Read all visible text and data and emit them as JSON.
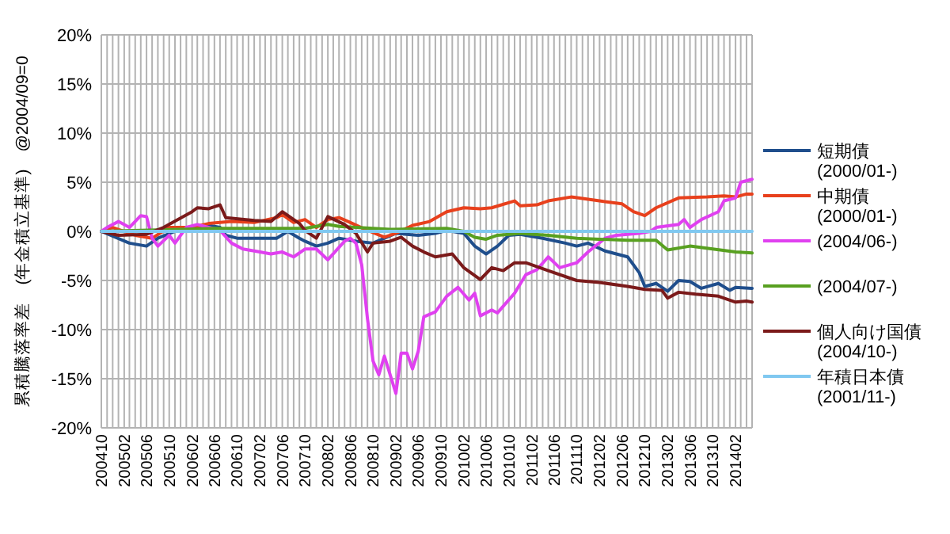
{
  "chart_data": {
    "type": "line",
    "ylabel": "累積騰落率差　(年金積立基準)　@2004/09=0",
    "ylim": [
      -20,
      20
    ],
    "yticks": [
      {
        "value": -20,
        "label": "-20%"
      },
      {
        "value": -15,
        "label": "-15%"
      },
      {
        "value": -10,
        "label": "-10%"
      },
      {
        "value": -5,
        "label": "-5%"
      },
      {
        "value": 0,
        "label": "0%"
      },
      {
        "value": 5,
        "label": "5%"
      },
      {
        "value": 10,
        "label": "10%"
      },
      {
        "value": 15,
        "label": "15%"
      },
      {
        "value": 20,
        "label": "20%"
      }
    ],
    "xlim": [
      "2004-10",
      "2014-05"
    ],
    "xticks": [
      {
        "value": "2004-10",
        "label": "200410"
      },
      {
        "value": "2004-11",
        "label": null
      },
      {
        "value": "2004-12",
        "label": null
      },
      {
        "value": "2005-01",
        "label": null
      },
      {
        "value": "2005-02",
        "label": "200502"
      },
      {
        "value": "2005-03",
        "label": null
      },
      {
        "value": "2005-04",
        "label": null
      },
      {
        "value": "2005-05",
        "label": null
      },
      {
        "value": "2005-06",
        "label": "200506"
      },
      {
        "value": "2005-07",
        "label": null
      },
      {
        "value": "2005-08",
        "label": null
      },
      {
        "value": "2005-09",
        "label": null
      },
      {
        "value": "2005-10",
        "label": "200510"
      },
      {
        "value": "2005-11",
        "label": null
      },
      {
        "value": "2005-12",
        "label": null
      },
      {
        "value": "2006-01",
        "label": null
      },
      {
        "value": "2006-02",
        "label": "200602"
      },
      {
        "value": "2006-03",
        "label": null
      },
      {
        "value": "2006-04",
        "label": null
      },
      {
        "value": "2006-05",
        "label": null
      },
      {
        "value": "2006-06",
        "label": "200606"
      },
      {
        "value": "2006-07",
        "label": null
      },
      {
        "value": "2006-08",
        "label": null
      },
      {
        "value": "2006-09",
        "label": null
      },
      {
        "value": "2006-10",
        "label": "200610"
      },
      {
        "value": "2006-11",
        "label": null
      },
      {
        "value": "2006-12",
        "label": null
      },
      {
        "value": "2007-01",
        "label": null
      },
      {
        "value": "2007-02",
        "label": "200702"
      },
      {
        "value": "2007-03",
        "label": null
      },
      {
        "value": "2007-04",
        "label": null
      },
      {
        "value": "2007-05",
        "label": null
      },
      {
        "value": "2007-06",
        "label": "200706"
      },
      {
        "value": "2007-07",
        "label": null
      },
      {
        "value": "2007-08",
        "label": null
      },
      {
        "value": "2007-09",
        "label": null
      },
      {
        "value": "2007-10",
        "label": "200710"
      },
      {
        "value": "2007-11",
        "label": null
      },
      {
        "value": "2007-12",
        "label": null
      },
      {
        "value": "2008-01",
        "label": null
      },
      {
        "value": "2008-02",
        "label": "200802"
      },
      {
        "value": "2008-03",
        "label": null
      },
      {
        "value": "2008-04",
        "label": null
      },
      {
        "value": "2008-05",
        "label": null
      },
      {
        "value": "2008-06",
        "label": "200806"
      },
      {
        "value": "2008-07",
        "label": null
      },
      {
        "value": "2008-08",
        "label": null
      },
      {
        "value": "2008-09",
        "label": null
      },
      {
        "value": "2008-10",
        "label": "200810"
      },
      {
        "value": "2008-11",
        "label": null
      },
      {
        "value": "2008-12",
        "label": null
      },
      {
        "value": "2009-01",
        "label": null
      },
      {
        "value": "2009-02",
        "label": "200902"
      },
      {
        "value": "2009-03",
        "label": null
      },
      {
        "value": "2009-04",
        "label": null
      },
      {
        "value": "2009-05",
        "label": null
      },
      {
        "value": "2009-06",
        "label": "200906"
      },
      {
        "value": "2009-07",
        "label": null
      },
      {
        "value": "2009-08",
        "label": null
      },
      {
        "value": "2009-09",
        "label": null
      },
      {
        "value": "2009-10",
        "label": "200910"
      },
      {
        "value": "2009-11",
        "label": null
      },
      {
        "value": "2009-12",
        "label": null
      },
      {
        "value": "2010-01",
        "label": null
      },
      {
        "value": "2010-02",
        "label": "201002"
      },
      {
        "value": "2010-03",
        "label": null
      },
      {
        "value": "2010-04",
        "label": null
      },
      {
        "value": "2010-05",
        "label": null
      },
      {
        "value": "2010-06",
        "label": "201006"
      },
      {
        "value": "2010-07",
        "label": null
      },
      {
        "value": "2010-08",
        "label": null
      },
      {
        "value": "2010-09",
        "label": null
      },
      {
        "value": "2010-10",
        "label": "201010"
      },
      {
        "value": "2010-11",
        "label": null
      },
      {
        "value": "2010-12",
        "label": null
      },
      {
        "value": "2011-01",
        "label": null
      },
      {
        "value": "2011-02",
        "label": "201102"
      },
      {
        "value": "2011-03",
        "label": null
      },
      {
        "value": "2011-04",
        "label": null
      },
      {
        "value": "2011-05",
        "label": null
      },
      {
        "value": "2011-06",
        "label": "201106"
      },
      {
        "value": "2011-07",
        "label": null
      },
      {
        "value": "2011-08",
        "label": null
      },
      {
        "value": "2011-09",
        "label": null
      },
      {
        "value": "2011-10",
        "label": "201110"
      },
      {
        "value": "2011-11",
        "label": null
      },
      {
        "value": "2011-12",
        "label": null
      },
      {
        "value": "2012-01",
        "label": null
      },
      {
        "value": "2012-02",
        "label": "201202"
      },
      {
        "value": "2012-03",
        "label": null
      },
      {
        "value": "2012-04",
        "label": null
      },
      {
        "value": "2012-05",
        "label": null
      },
      {
        "value": "2012-06",
        "label": "201206"
      },
      {
        "value": "2012-07",
        "label": null
      },
      {
        "value": "2012-08",
        "label": null
      },
      {
        "value": "2012-09",
        "label": null
      },
      {
        "value": "2012-10",
        "label": "201210"
      },
      {
        "value": "2012-11",
        "label": null
      },
      {
        "value": "2012-12",
        "label": null
      },
      {
        "value": "2013-01",
        "label": null
      },
      {
        "value": "2013-02",
        "label": "201302"
      },
      {
        "value": "2013-03",
        "label": null
      },
      {
        "value": "2013-04",
        "label": null
      },
      {
        "value": "2013-05",
        "label": null
      },
      {
        "value": "2013-06",
        "label": "201306"
      },
      {
        "value": "2013-07",
        "label": null
      },
      {
        "value": "2013-08",
        "label": null
      },
      {
        "value": "2013-09",
        "label": null
      },
      {
        "value": "2013-10",
        "label": "201310"
      },
      {
        "value": "2013-11",
        "label": null
      },
      {
        "value": "2013-12",
        "label": null
      },
      {
        "value": "2014-01",
        "label": null
      },
      {
        "value": "2014-02",
        "label": "201402"
      },
      {
        "value": "2014-03",
        "label": null
      },
      {
        "value": "2014-04",
        "label": null
      },
      {
        "value": "2014-05",
        "label": null
      }
    ],
    "grid": true,
    "legend": "right",
    "line_style": "solid",
    "marker": "none",
    "series": [
      {
        "name": "短期債\n(2000/01-)",
        "color": "#1f4e8c",
        "x": [
          "2004-10",
          "2005-03",
          "2005-06",
          "2005-08",
          "2005-11",
          "2006-02",
          "2006-05",
          "2006-07",
          "2006-08",
          "2006-10",
          "2007-02",
          "2007-05",
          "2007-07",
          "2007-09",
          "2007-10",
          "2007-12",
          "2008-02",
          "2008-04",
          "2008-07",
          "2008-10",
          "2008-12",
          "2009-02",
          "2009-06",
          "2009-09",
          "2009-11",
          "2010-02",
          "2010-04",
          "2010-06",
          "2010-08",
          "2010-10",
          "2010-12",
          "2011-04",
          "2011-08",
          "2011-10",
          "2011-12",
          "2012-03",
          "2012-07",
          "2012-09",
          "2012-10",
          "2012-12",
          "2013-02",
          "2013-04",
          "2013-06",
          "2013-08",
          "2013-11",
          "2014-01",
          "2014-02",
          "2014-05"
        ],
        "values": [
          0,
          -1.2,
          -1.5,
          -0.7,
          0,
          0.1,
          0.6,
          0.4,
          -0.4,
          -0.7,
          -0.7,
          -0.7,
          0,
          -0.7,
          -1.0,
          -1.5,
          -1.2,
          -0.7,
          -1.0,
          -1.2,
          -0.7,
          -0.2,
          -0.4,
          -0.2,
          0.1,
          -0.2,
          -1.5,
          -2.3,
          -1.5,
          -0.4,
          -0.3,
          -0.7,
          -1.2,
          -1.5,
          -1.2,
          -2.0,
          -2.6,
          -4.2,
          -5.6,
          -5.3,
          -6.1,
          -5.0,
          -5.1,
          -5.8,
          -5.3,
          -6.0,
          -5.7,
          -5.8
        ]
      },
      {
        "name": "中期債\n(2000/01-)",
        "color": "#e8401c",
        "x": [
          "2004-10",
          "2004-12",
          "2005-04",
          "2005-07",
          "2005-10",
          "2006-02",
          "2006-05",
          "2006-09",
          "2007-01",
          "2007-05",
          "2007-06",
          "2007-08",
          "2007-10",
          "2007-12",
          "2008-02",
          "2008-04",
          "2008-06",
          "2008-09",
          "2008-12",
          "2009-02",
          "2009-05",
          "2009-08",
          "2009-11",
          "2010-02",
          "2010-05",
          "2010-07",
          "2010-11",
          "2010-12",
          "2011-03",
          "2011-05",
          "2011-09",
          "2012-02",
          "2012-06",
          "2012-08",
          "2012-10",
          "2012-12",
          "2013-04",
          "2013-09",
          "2013-12",
          "2014-02",
          "2014-04",
          "2014-05"
        ],
        "values": [
          0,
          0.4,
          -0.4,
          -0.7,
          0.4,
          0.4,
          0.8,
          1.0,
          0.9,
          1.4,
          1.7,
          0.9,
          1.2,
          0.4,
          1.2,
          1.4,
          0.9,
          0.1,
          -0.6,
          -0.2,
          0.6,
          1.0,
          2.0,
          2.4,
          2.3,
          2.4,
          3.1,
          2.6,
          2.7,
          3.1,
          3.5,
          3.1,
          2.8,
          2.0,
          1.6,
          2.4,
          3.4,
          3.5,
          3.6,
          3.5,
          3.8,
          3.8
        ]
      },
      {
        "name": "(2004/06-)",
        "color": "#e040f0",
        "x": [
          "2004-10",
          "2004-11",
          "2005-01",
          "2005-03",
          "2005-05",
          "2005-06",
          "2005-07",
          "2005-08",
          "2005-10",
          "2005-11",
          "2006-01",
          "2006-03",
          "2006-07",
          "2006-09",
          "2006-11",
          "2007-02",
          "2007-04",
          "2007-06",
          "2007-08",
          "2007-10",
          "2007-12",
          "2008-02",
          "2008-05",
          "2008-06",
          "2008-07",
          "2008-08",
          "2008-09",
          "2008-10",
          "2008-11",
          "2008-12",
          "2009-02",
          "2009-03",
          "2009-04",
          "2009-05",
          "2009-06",
          "2009-07",
          "2009-09",
          "2009-11",
          "2010-01",
          "2010-03",
          "2010-04",
          "2010-05",
          "2010-07",
          "2010-08",
          "2010-11",
          "2011-01",
          "2011-03",
          "2011-05",
          "2011-07",
          "2011-10",
          "2011-12",
          "2012-03",
          "2012-05",
          "2012-09",
          "2012-11",
          "2012-12",
          "2013-04",
          "2013-05",
          "2013-06",
          "2013-08",
          "2013-11",
          "2013-12",
          "2014-02",
          "2014-03",
          "2014-05"
        ],
        "values": [
          0,
          0.4,
          1.0,
          0.4,
          1.6,
          1.5,
          -0.7,
          -1.5,
          -0.4,
          -1.2,
          0.4,
          0.7,
          0.1,
          -1.2,
          -1.8,
          -2.1,
          -2.3,
          -2.1,
          -2.6,
          -1.8,
          -1.8,
          -2.9,
          -1.0,
          -0.7,
          -1.2,
          -3.4,
          -8.9,
          -13.2,
          -14.6,
          -12.7,
          -16.5,
          -12.4,
          -12.4,
          -14.0,
          -12.2,
          -8.7,
          -8.2,
          -6.6,
          -5.7,
          -7.0,
          -6.3,
          -8.6,
          -8.0,
          -8.3,
          -6.3,
          -4.4,
          -3.9,
          -2.6,
          -3.7,
          -3.2,
          -2.1,
          -0.7,
          -0.4,
          -0.2,
          0,
          0.4,
          0.7,
          1.2,
          0.4,
          1.2,
          2.0,
          3.1,
          3.4,
          5.0,
          5.3
        ]
      },
      {
        "name": "(2004/07-)",
        "color": "#58a020",
        "x": [
          "2004-10",
          "2006-06",
          "2007-10",
          "2008-02",
          "2008-04",
          "2009-01",
          "2009-11",
          "2010-02",
          "2010-04",
          "2010-06",
          "2010-08",
          "2010-12",
          "2011-05",
          "2011-10",
          "2012-02",
          "2012-07",
          "2012-12",
          "2013-02",
          "2013-06",
          "2013-10",
          "2014-02",
          "2014-05"
        ],
        "values": [
          0,
          0.3,
          0.3,
          0.7,
          0.5,
          0.2,
          0.3,
          0,
          -0.6,
          -0.8,
          -0.4,
          -0.2,
          -0.4,
          -0.7,
          -0.8,
          -0.9,
          -0.9,
          -1.9,
          -1.5,
          -1.8,
          -2.1,
          -2.2
        ]
      },
      {
        "name": "個人向け国債\n(2004/10-)",
        "color": "#7b1a1a",
        "x": [
          "2004-10",
          "2005-01",
          "2005-06",
          "2005-09",
          "2006-02",
          "2006-03",
          "2006-05",
          "2006-07",
          "2006-08",
          "2007-01",
          "2007-04",
          "2007-06",
          "2007-09",
          "2007-10",
          "2007-12",
          "2008-02",
          "2008-05",
          "2008-07",
          "2008-09",
          "2008-10",
          "2009-01",
          "2009-03",
          "2009-05",
          "2009-07",
          "2009-09",
          "2009-12",
          "2010-02",
          "2010-05",
          "2010-07",
          "2010-09",
          "2010-11",
          "2011-01",
          "2011-05",
          "2011-10",
          "2012-02",
          "2012-07",
          "2012-10",
          "2013-01",
          "2013-02",
          "2013-04",
          "2013-07",
          "2013-11",
          "2014-02",
          "2014-04",
          "2014-05"
        ],
        "values": [
          0,
          -0.4,
          -0.3,
          0.4,
          2.0,
          2.4,
          2.3,
          2.7,
          1.4,
          1.1,
          1.0,
          2.0,
          0.8,
          0.1,
          -0.7,
          1.5,
          0.7,
          -0.2,
          -2.1,
          -1.2,
          -1.0,
          -0.6,
          -1.5,
          -2.1,
          -2.6,
          -2.3,
          -3.7,
          -4.9,
          -3.7,
          -4.0,
          -3.2,
          -3.2,
          -4.0,
          -5.0,
          -5.2,
          -5.6,
          -5.9,
          -6.0,
          -6.8,
          -6.2,
          -6.4,
          -6.6,
          -7.2,
          -7.1,
          -7.2
        ]
      },
      {
        "name": "年積日本債\n(2001/11-)",
        "color": "#80c8f0",
        "x": [
          "2004-10",
          "2014-05"
        ],
        "values": [
          0,
          0
        ]
      }
    ]
  }
}
